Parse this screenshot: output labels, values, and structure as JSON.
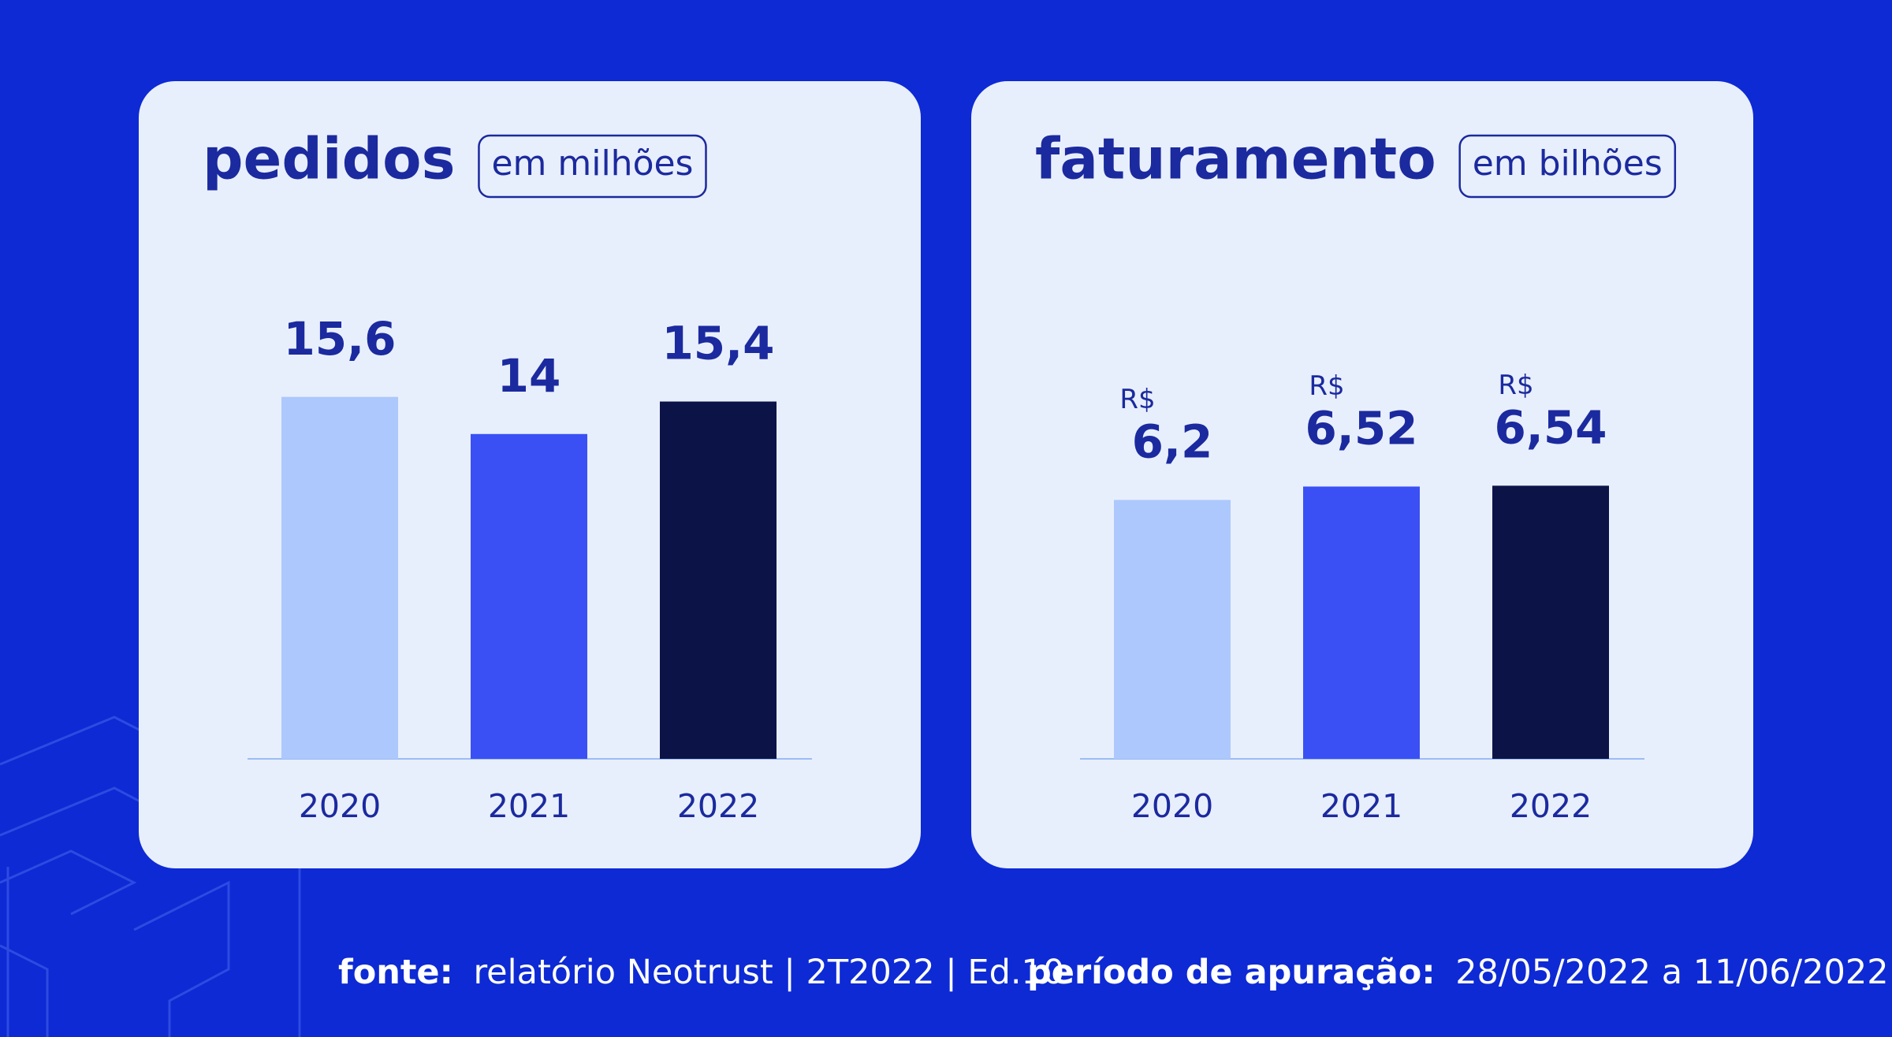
{
  "chart_data": [
    {
      "type": "bar",
      "title": "pedidos",
      "subtitle": "em milhões",
      "categories": [
        "2020",
        "2021",
        "2022"
      ],
      "values": [
        15.6,
        14,
        15.4
      ],
      "value_labels": [
        "15,6",
        "14",
        "15,4"
      ],
      "colors": [
        "#adc8fc",
        "#3a50f5",
        "#0c1447"
      ],
      "ylim": [
        0,
        18
      ]
    },
    {
      "type": "bar",
      "title": "faturamento",
      "subtitle": "em bilhões",
      "categories": [
        "2020",
        "2021",
        "2022"
      ],
      "values": [
        6.2,
        6.52,
        6.54
      ],
      "value_labels": [
        "6,2",
        "6,52",
        "6,54"
      ],
      "value_prefix": "R$",
      "colors": [
        "#adc8fc",
        "#3a50f5",
        "#0c1447"
      ],
      "ylim": [
        0,
        10
      ]
    }
  ],
  "footer": {
    "source_label": "fonte:",
    "source": "relatório Neotrust | 2T2022 | Ed.10",
    "period_label": "período de apuração:",
    "period": "28/05/2022 a 11/06/2022"
  }
}
